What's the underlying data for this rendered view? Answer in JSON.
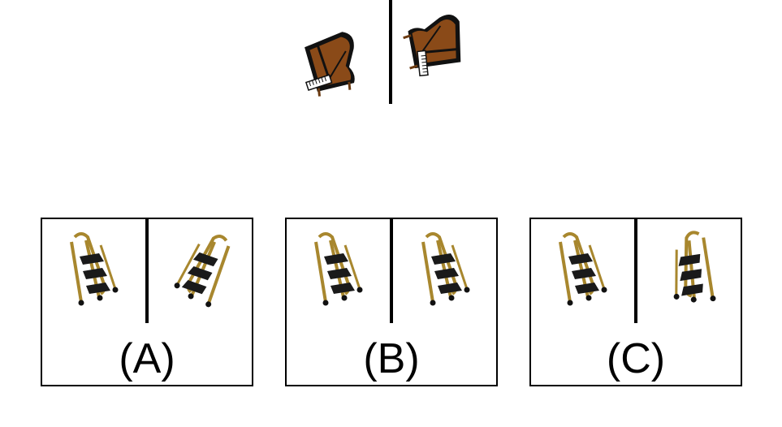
{
  "question": {
    "example_pair": {
      "left": "grand-piano-icon",
      "right": "grand-piano-rotated-icon"
    }
  },
  "options": [
    {
      "label": "(A)",
      "left": "step-ladder-icon",
      "right": "step-ladder-transformed-icon"
    },
    {
      "label": "(B)",
      "left": "step-ladder-icon",
      "right": "step-ladder-transformed-icon"
    },
    {
      "label": "(C)",
      "left": "step-ladder-icon",
      "right": "step-ladder-transformed-icon"
    }
  ],
  "colors": {
    "piano_wood": "#8a4a18",
    "piano_black": "#111111",
    "ladder_gold": "#a8872e",
    "ladder_step": "#1a1a1a"
  }
}
